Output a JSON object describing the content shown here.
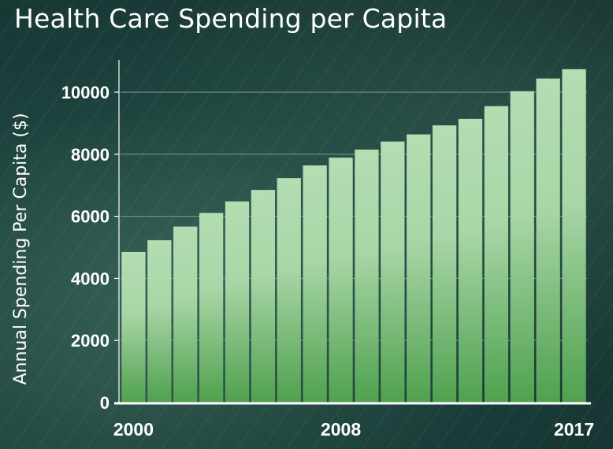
{
  "chart_data": {
    "type": "bar",
    "title": "Health Care Spending per Capita",
    "xlabel": "",
    "ylabel": "Annual Spending Per Capita ($)",
    "categories": [
      "2000",
      "2001",
      "2002",
      "2003",
      "2004",
      "2005",
      "2006",
      "2007",
      "2008",
      "2009",
      "2010",
      "2011",
      "2012",
      "2013",
      "2014",
      "2015",
      "2016",
      "2017"
    ],
    "x_tick_labels": [
      "2000",
      "2008",
      "2017"
    ],
    "values": [
      4850,
      5230,
      5670,
      6110,
      6480,
      6850,
      7230,
      7640,
      7890,
      8150,
      8410,
      8640,
      8930,
      9140,
      9550,
      10030,
      10440,
      10740
    ],
    "yticks": [
      0,
      2000,
      4000,
      6000,
      8000,
      10000
    ],
    "ylim": [
      0,
      11000
    ],
    "grid": true,
    "legend": "none",
    "colors": {
      "bar_top": "#b4ddb2",
      "bar_bottom": "#4fa14f",
      "axis": "#ffffff",
      "grid": "#7d9990"
    }
  }
}
